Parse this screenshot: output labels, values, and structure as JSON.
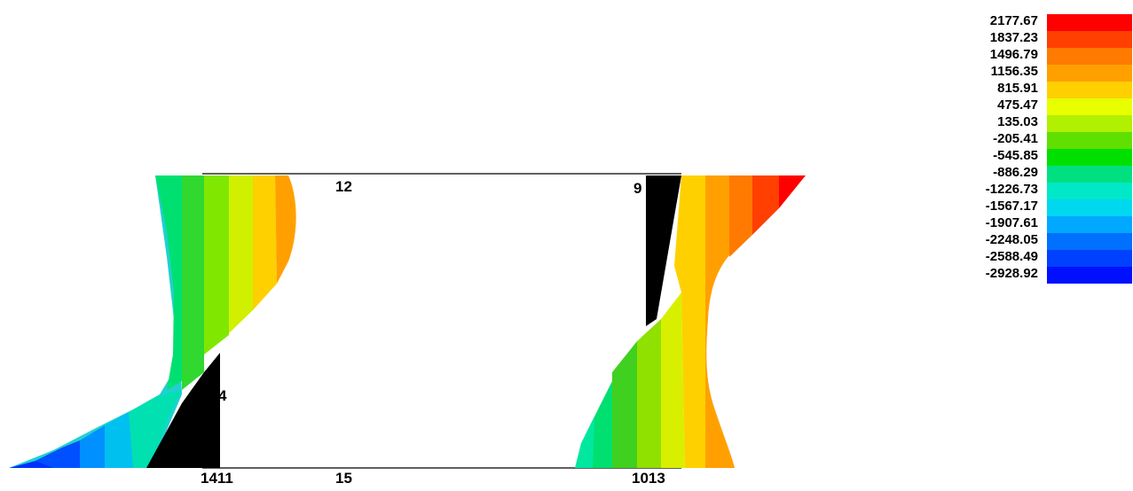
{
  "node_labels": {
    "n12": "12",
    "n9": "9",
    "n4": "4",
    "n1411": "1411",
    "n15": "15",
    "n1013": "1013"
  },
  "legend": {
    "values": [
      "2177.67",
      "1837.23",
      "1496.79",
      "1156.35",
      "815.91",
      "475.47",
      "135.03",
      "-205.41",
      "-545.85",
      "-886.29",
      "-1226.73",
      "-1567.17",
      "-1907.61",
      "-2248.05",
      "-2588.49",
      "-2928.92"
    ],
    "colors": [
      "#ff0000",
      "#ff4000",
      "#ff7a00",
      "#ffa000",
      "#ffd000",
      "#e8ff00",
      "#b0f000",
      "#60e000",
      "#00e000",
      "#00e080",
      "#00e8c8",
      "#00d8f0",
      "#00a8ff",
      "#0070ff",
      "#0040ff",
      "#0010ff"
    ]
  },
  "colors": {
    "frame_line": "#000000",
    "stress_black": "#000000"
  }
}
